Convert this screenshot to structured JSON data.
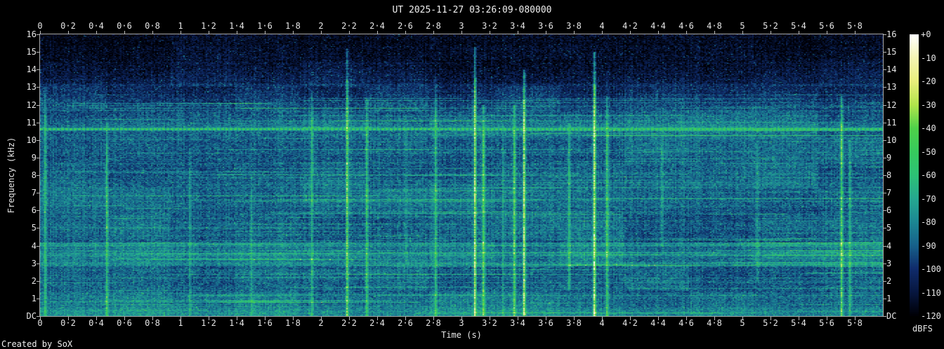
{
  "title": "UT 2025-11-27 03:26:09·080000",
  "credit": "Created by SoX",
  "axis": {
    "x_label": "Time (s)",
    "y_label": "Frequency (kHz)",
    "colorbar_label": "dBFS",
    "x_ticks": [
      "0",
      "0·2",
      "0·4",
      "0·6",
      "0·8",
      "1",
      "1·2",
      "1·4",
      "1·6",
      "1·8",
      "2",
      "2·2",
      "2·4",
      "2·6",
      "2·8",
      "3",
      "3·2",
      "3·4",
      "3·6",
      "3·8",
      "4",
      "4·2",
      "4·4",
      "4·6",
      "4·8",
      "5",
      "5·2",
      "5·4",
      "5·6",
      "5·8"
    ],
    "y_ticks": [
      "16",
      "15",
      "14",
      "13",
      "12",
      "11",
      "10",
      "9",
      "8",
      "7",
      "6",
      "5",
      "4",
      "3",
      "2",
      "1",
      "DC"
    ],
    "colorbar_ticks": [
      "+0",
      "-10",
      "-20",
      "-30",
      "-40",
      "-50",
      "-60",
      "-70",
      "-80",
      "-90",
      "-100",
      "-110",
      "-120"
    ]
  },
  "colors": {
    "background": "#000000",
    "text": "#e6e6e6",
    "axis_line": "#a8a8a8"
  },
  "chart_data": {
    "type": "heatmap",
    "subtype": "audio-spectrogram",
    "title": "UT 2025-11-27 03:26:09·080000",
    "xlabel": "Time (s)",
    "ylabel": "Frequency (kHz)",
    "zlabel": "dBFS",
    "xlim_s": [
      0,
      6.0
    ],
    "ylim_khz": [
      0,
      16
    ],
    "zlim_dbfs": [
      -120,
      0
    ],
    "x_tick_step_s": 0.2,
    "grid": false,
    "legend": "colorbar-right",
    "palette_dbfs": [
      [
        0,
        "#ffffff"
      ],
      [
        -10,
        "#f5f5b4"
      ],
      [
        -20,
        "#e9ef7c"
      ],
      [
        -30,
        "#b2e54c"
      ],
      [
        -40,
        "#4fd24a"
      ],
      [
        -50,
        "#37ca5e"
      ],
      [
        -60,
        "#2dc277"
      ],
      [
        -70,
        "#26a991"
      ],
      [
        -80,
        "#1c8894"
      ],
      [
        -90,
        "#17628b"
      ],
      [
        -100,
        "#102c6c"
      ],
      [
        -110,
        "#071740"
      ],
      [
        -120,
        "#000006"
      ]
    ],
    "tonal_line": {
      "f_khz": 10.62,
      "approx_level_dbfs": -48,
      "dashed": true
    },
    "noise_floor": {
      "profile_points_khz_v": [
        [
          16,
          0.02
        ],
        [
          15.3,
          0.03
        ],
        [
          13.8,
          0.08
        ],
        [
          12.5,
          0.15
        ],
        [
          11.6,
          0.2
        ],
        [
          10.8,
          0.22
        ],
        [
          10.6,
          0.25
        ],
        [
          0,
          0.25
        ]
      ],
      "bands_khz_boost": [
        [
          2.85,
          4.2,
          0.05
        ],
        [
          3.4,
          3.6,
          0.05
        ],
        [
          2.9,
          3.1,
          0.04
        ],
        [
          3.95,
          4.18,
          0.06
        ],
        [
          0,
          1.35,
          0.04
        ],
        [
          0,
          0.5,
          0.05
        ],
        [
          4.9,
          5.25,
          0.02
        ],
        [
          6.2,
          7.8,
          0.02
        ],
        [
          13.05,
          13.2,
          0.03
        ]
      ]
    },
    "transients": [
      {
        "t_s": 0.03,
        "f_lo_khz": 0,
        "f_hi_khz": 13,
        "strength": 0.3
      },
      {
        "t_s": 0.465,
        "f_lo_khz": 0,
        "f_hi_khz": 11,
        "strength": 0.33
      },
      {
        "t_s": 1.06,
        "f_lo_khz": 0,
        "f_hi_khz": 9.5,
        "strength": 0.16
      },
      {
        "t_s": 1.5,
        "f_lo_khz": 0,
        "f_hi_khz": 8,
        "strength": 0.12
      },
      {
        "t_s": 1.925,
        "f_lo_khz": 0,
        "f_hi_khz": 12.8,
        "strength": 0.24
      },
      {
        "t_s": 2.18,
        "f_lo_khz": 0,
        "f_hi_khz": 15.2,
        "strength": 0.5
      },
      {
        "t_s": 2.315,
        "f_lo_khz": 0,
        "f_hi_khz": 12.3,
        "strength": 0.34
      },
      {
        "t_s": 2.6,
        "f_lo_khz": 3,
        "f_hi_khz": 11.5,
        "strength": 0.13
      },
      {
        "t_s": 2.805,
        "f_lo_khz": 0,
        "f_hi_khz": 13.5,
        "strength": 0.27
      },
      {
        "t_s": 3.09,
        "f_lo_khz": 0,
        "f_hi_khz": 15.3,
        "strength": 0.6
      },
      {
        "t_s": 3.15,
        "f_lo_khz": 0,
        "f_hi_khz": 12,
        "strength": 0.45
      },
      {
        "t_s": 3.285,
        "f_lo_khz": 0,
        "f_hi_khz": 11,
        "strength": 0.15
      },
      {
        "t_s": 3.365,
        "f_lo_khz": 0,
        "f_hi_khz": 12,
        "strength": 0.4
      },
      {
        "t_s": 3.44,
        "f_lo_khz": 0,
        "f_hi_khz": 14,
        "strength": 0.62
      },
      {
        "t_s": 3.755,
        "f_lo_khz": 1.5,
        "f_hi_khz": 11,
        "strength": 0.24
      },
      {
        "t_s": 3.94,
        "f_lo_khz": 0,
        "f_hi_khz": 15,
        "strength": 0.68
      },
      {
        "t_s": 4.03,
        "f_lo_khz": 0,
        "f_hi_khz": 12.5,
        "strength": 0.34
      },
      {
        "t_s": 4.415,
        "f_lo_khz": 4,
        "f_hi_khz": 10.5,
        "strength": 0.18
      },
      {
        "t_s": 5.1,
        "f_lo_khz": 2,
        "f_hi_khz": 10,
        "strength": 0.12
      },
      {
        "t_s": 5.7,
        "f_lo_khz": 0,
        "f_hi_khz": 12.5,
        "strength": 0.42
      },
      {
        "t_s": 5.755,
        "f_lo_khz": 0,
        "f_hi_khz": 10,
        "strength": 0.24
      }
    ],
    "render": {
      "seed": 1337,
      "cols": 600,
      "rows": 402,
      "jitter": 0.18,
      "speckle_prob": 0.06,
      "speckle_boost": 0.2,
      "row_streak_prob": 0.45,
      "dash_period_cols": 3
    }
  }
}
